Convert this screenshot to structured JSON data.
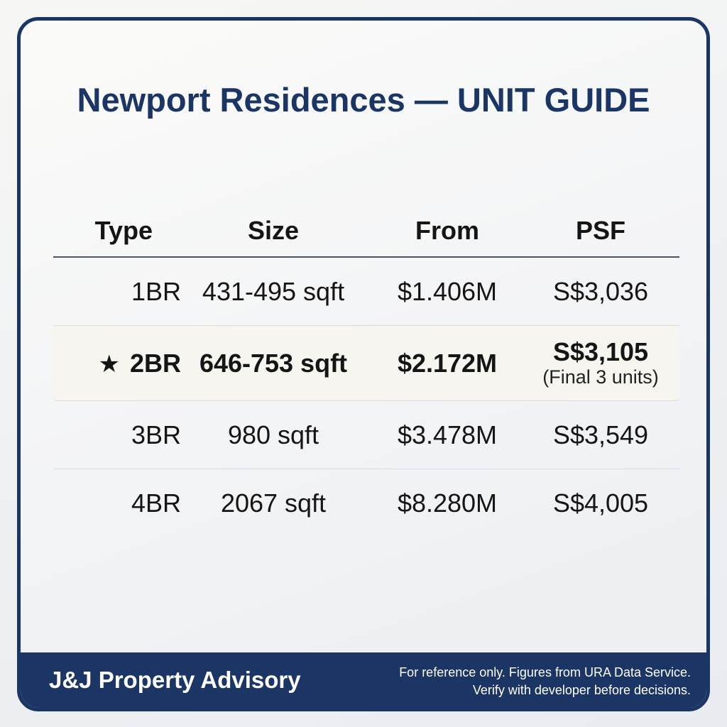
{
  "title": "Newport Residences — UNIT GUIDE",
  "columns": [
    "Type",
    "Size",
    "From",
    "PSF"
  ],
  "rows": [
    {
      "type": "1BR",
      "size": "431-495 sqft",
      "from": "$1.406M",
      "psf": "S$3,036",
      "note": ""
    },
    {
      "type": "2BR",
      "size": "646-753 sqft",
      "from": "$2.172M",
      "psf": "S$3,105",
      "note": "(Final 3 units)",
      "marker": "★"
    },
    {
      "type": "3BR",
      "size": "980 sqft",
      "from": "$3.478M",
      "psf": "S$3,549",
      "note": ""
    },
    {
      "type": "4BR",
      "size": "2067 sqft",
      "from": "$8.280M",
      "psf": "S$4,005",
      "note": ""
    }
  ],
  "footer": {
    "brand": "J&J Property Advisory",
    "disclaimer_line1": "For reference only. Figures from URA Data Service.",
    "disclaimer_line2": "Verify with developer before decisions."
  },
  "colors": {
    "navy": "#1b3564",
    "highlight_row": "#f6f5f0"
  },
  "icons": {
    "highlight_marker": "star-icon"
  }
}
